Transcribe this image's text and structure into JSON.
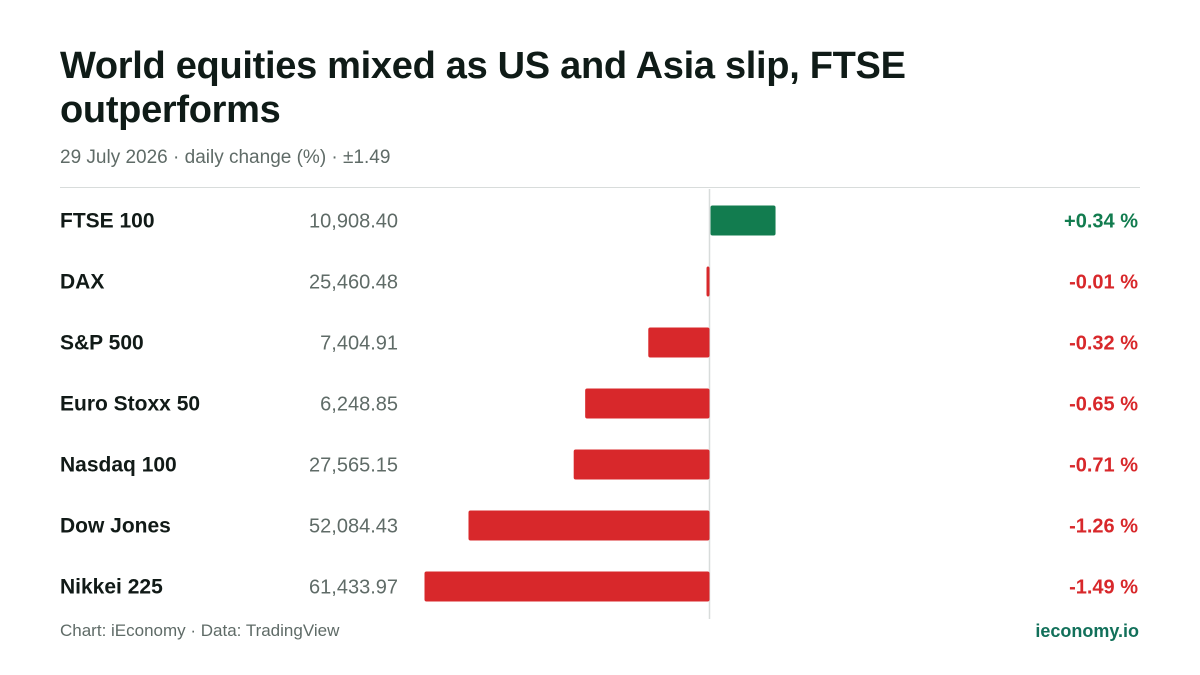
{
  "header": {
    "title": "World equities mixed as US and Asia slip, FTSE outperforms",
    "subtitle": "29 July 2026 · daily change (%) · ±1.49"
  },
  "footer": {
    "source": "Chart: iEconomy · Data: TradingView",
    "brand": "ieconomy.io"
  },
  "colors": {
    "positive": "#127c4f",
    "negative": "#d8282b",
    "brand": "#12705a",
    "axis": "#d8dcdb"
  },
  "chart_data": {
    "type": "bar",
    "orientation": "horizontal",
    "title": "World equities mixed as US and Asia slip, FTSE outperforms",
    "subtitle": "29 July 2026 · daily change (%) · ±1.49",
    "xlim": [
      -1.49,
      1.49
    ],
    "grid": false,
    "categories": [
      "FTSE 100",
      "DAX",
      "S&P 500",
      "Euro Stoxx 50",
      "Nasdaq 100",
      "Dow Jones",
      "Nikkei 225"
    ],
    "prices": [
      "10,908.40",
      "25,460.48",
      "7,404.91",
      "6,248.85",
      "27,565.15",
      "52,084.43",
      "61,433.97"
    ],
    "values": [
      0.34,
      -0.01,
      -0.32,
      -0.65,
      -0.71,
      -1.26,
      -1.49
    ],
    "value_labels": [
      "+0.34 %",
      "-0.01 %",
      "-0.32 %",
      "-0.65 %",
      "-0.71 %",
      "-1.26 %",
      "-1.49 %"
    ]
  }
}
